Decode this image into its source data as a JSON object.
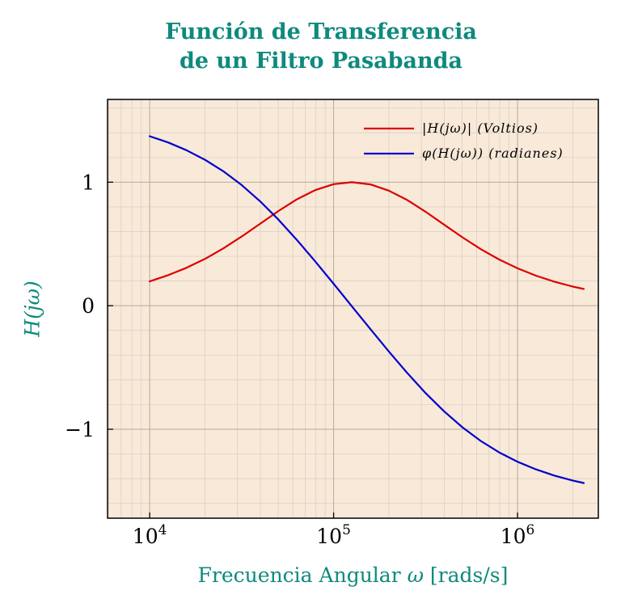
{
  "figure": {
    "title_line1": "Función de Transferencia",
    "title_line2": "de un Filtro Pasabanda",
    "title_color": "#0e8a7d",
    "axis_label_color": "#0e8a7d",
    "xlabel_parts": {
      "prefix": "Frecuencia Angular ",
      "omega": "ω",
      "suffix": " [rads/s]"
    }
  },
  "chart_data": {
    "type": "line",
    "title": "Función de Transferencia de un Filtro Pasabanda",
    "xlabel": "Frecuencia Angular ω [rads/s]",
    "ylabel": "H(jω)",
    "x_scale": "log",
    "xlim": [
      5900,
      2750000
    ],
    "ylim": [
      -1.72,
      1.67
    ],
    "xticks": [
      10000,
      100000,
      1000000
    ],
    "xtick_labels": [
      {
        "base": "10",
        "exp": "4"
      },
      {
        "base": "10",
        "exp": "5"
      },
      {
        "base": "10",
        "exp": "6"
      }
    ],
    "yticks": [
      1,
      0,
      -1
    ],
    "ytick_labels": [
      "1",
      "0",
      "−1"
    ],
    "y_minor_step": 0.2,
    "grid": true,
    "legend_position": "upper right",
    "plot_bg": "#f8e9d9",
    "grid_major_color": "#b5aa9c",
    "grid_minor_color": "#d8cec1",
    "border_color": "#000000",
    "x": [
      10000,
      12589,
      15849,
      19953,
      25119,
      31623,
      39811,
      50119,
      63096,
      79433,
      100000,
      125893,
      158489,
      199526,
      251189,
      316228,
      398107,
      501187,
      630957,
      794328,
      1000000,
      1258925,
      1584893,
      1995262,
      2290868
    ],
    "series": [
      {
        "name": "|H(jω)| (Voltios)",
        "color": "#dc0000",
        "values": [
          0.197,
          0.247,
          0.307,
          0.379,
          0.464,
          0.56,
          0.663,
          0.767,
          0.861,
          0.936,
          0.984,
          1.0,
          0.982,
          0.932,
          0.856,
          0.761,
          0.657,
          0.554,
          0.458,
          0.374,
          0.303,
          0.243,
          0.195,
          0.155,
          0.136
        ]
      },
      {
        "name": "φ(H(jω)) (radianes)",
        "color": "#0000cd",
        "values": [
          1.372,
          1.322,
          1.259,
          1.182,
          1.089,
          0.977,
          0.846,
          0.697,
          0.533,
          0.359,
          0.178,
          -0.006,
          -0.189,
          -0.37,
          -0.544,
          -0.707,
          -0.854,
          -0.984,
          -1.095,
          -1.187,
          -1.263,
          -1.325,
          -1.375,
          -1.415,
          -1.435
        ]
      }
    ]
  }
}
